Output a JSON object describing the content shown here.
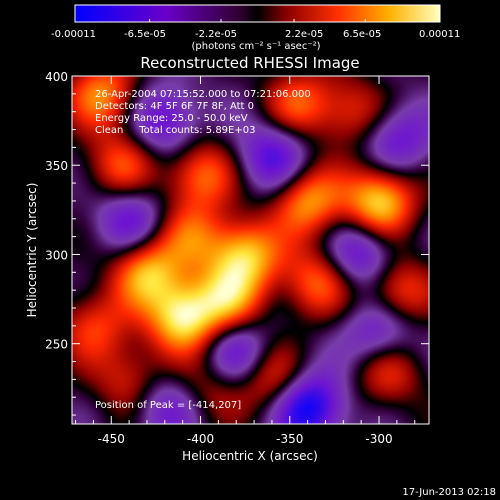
{
  "chart_data": {
    "type": "heatmap",
    "title": "Reconstructed RHESSI Image",
    "xlabel": "Heliocentric X (arcsec)",
    "ylabel": "Heliocentric Y (arcsec)",
    "xlim": [
      -472,
      -272
    ],
    "ylim": [
      205,
      400
    ],
    "x_ticks": [
      "-450",
      "-400",
      "-350",
      "-300"
    ],
    "x_tick_values": [
      -450,
      -400,
      -350,
      -300
    ],
    "y_ticks": [
      "250",
      "300",
      "350",
      "400"
    ],
    "y_tick_values": [
      250,
      300,
      350,
      400
    ],
    "colorbar": {
      "tick_labels": [
        "-0.00011",
        "-6.5e-05",
        "-2.2e-05",
        "2.2e-05",
        "6.5e-05",
        "0.00011"
      ],
      "units_label": "(photons cm⁻² s⁻¹ asec⁻²)",
      "range": [
        -0.00011,
        0.00011
      ]
    },
    "annotations": [
      "26-Apr-2004 07:15:52.000 to 07:21:06.000",
      "Detectors: 4F 5F 6F 7F 8F, Att 0",
      "Energy Range: 25.0 - 50.0 keV",
      "Clean     Total counts: 5.89E+03"
    ],
    "peak_label": "Position of Peak = [-414,207]",
    "peak_position": [
      -414,
      207
    ],
    "sources": [
      {
        "x": -455,
        "y": 390,
        "v": 0.7
      },
      {
        "x": -445,
        "y": 350,
        "v": 0.55
      },
      {
        "x": -430,
        "y": 290,
        "v": 0.8
      },
      {
        "x": -410,
        "y": 265,
        "v": 1.0
      },
      {
        "x": -440,
        "y": 230,
        "v": 0.45
      },
      {
        "x": -400,
        "y": 345,
        "v": 0.65
      },
      {
        "x": -405,
        "y": 310,
        "v": 0.5
      },
      {
        "x": -385,
        "y": 275,
        "v": 0.7
      },
      {
        "x": -375,
        "y": 300,
        "v": 0.85
      },
      {
        "x": -345,
        "y": 385,
        "v": 0.55
      },
      {
        "x": -340,
        "y": 330,
        "v": 0.75
      },
      {
        "x": -335,
        "y": 285,
        "v": 0.6
      },
      {
        "x": -360,
        "y": 230,
        "v": 0.55
      },
      {
        "x": -300,
        "y": 330,
        "v": 0.95
      },
      {
        "x": -290,
        "y": 280,
        "v": 0.6
      },
      {
        "x": -295,
        "y": 235,
        "v": 0.5
      },
      {
        "x": -315,
        "y": 380,
        "v": 0.45
      },
      {
        "x": -460,
        "y": 260,
        "v": 0.5
      },
      {
        "x": -340,
        "y": 215,
        "v": -0.9
      },
      {
        "x": -360,
        "y": 355,
        "v": -0.6
      },
      {
        "x": -420,
        "y": 375,
        "v": -0.55
      },
      {
        "x": -440,
        "y": 320,
        "v": -0.5
      },
      {
        "x": -380,
        "y": 245,
        "v": -0.55
      },
      {
        "x": -310,
        "y": 300,
        "v": -0.6
      },
      {
        "x": -290,
        "y": 365,
        "v": -0.5
      },
      {
        "x": -420,
        "y": 215,
        "v": -0.45
      },
      {
        "x": -300,
        "y": 255,
        "v": -0.55
      },
      {
        "x": -395,
        "y": 225,
        "v": 0.35
      }
    ]
  },
  "footer": {
    "timestamp": "17-Jun-2013 02:18"
  }
}
